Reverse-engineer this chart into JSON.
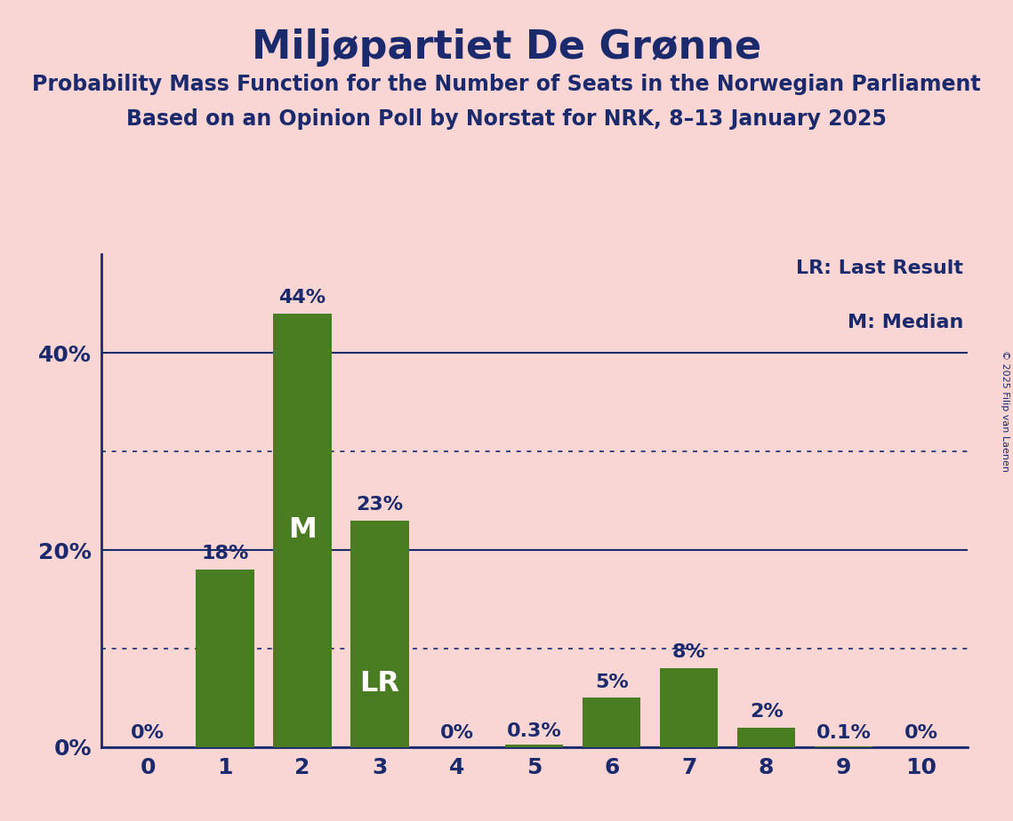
{
  "title": "Miljøpartiet De Grønne",
  "subtitle1": "Probability Mass Function for the Number of Seats in the Norwegian Parliament",
  "subtitle2": "Based on an Opinion Poll by Norstat for NRK, 8–13 January 2025",
  "copyright": "© 2025 Filip van Laenen",
  "categories": [
    0,
    1,
    2,
    3,
    4,
    5,
    6,
    7,
    8,
    9,
    10
  ],
  "values": [
    0.0,
    18.0,
    44.0,
    23.0,
    0.0,
    0.3,
    5.0,
    8.0,
    2.0,
    0.1,
    0.0
  ],
  "bar_labels": [
    "0%",
    "18%",
    "44%",
    "23%",
    "0%",
    "0.3%",
    "5%",
    "8%",
    "2%",
    "0.1%",
    "0%"
  ],
  "bar_color": "#4a7c22",
  "background_color": "#f9d5d3",
  "text_color": "#1a2a6c",
  "title_fontsize": 32,
  "subtitle_fontsize": 17,
  "label_fontsize": 16,
  "tick_fontsize": 18,
  "median_bar": 2,
  "lr_bar": 3,
  "legend_lr": "LR: Last Result",
  "legend_m": "M: Median",
  "ylim": [
    0,
    50
  ],
  "solid_gridlines": [
    0,
    20,
    40
  ],
  "dotted_gridlines": [
    10,
    30
  ],
  "ytick_labels": [
    "0%",
    "20%",
    "40%"
  ]
}
